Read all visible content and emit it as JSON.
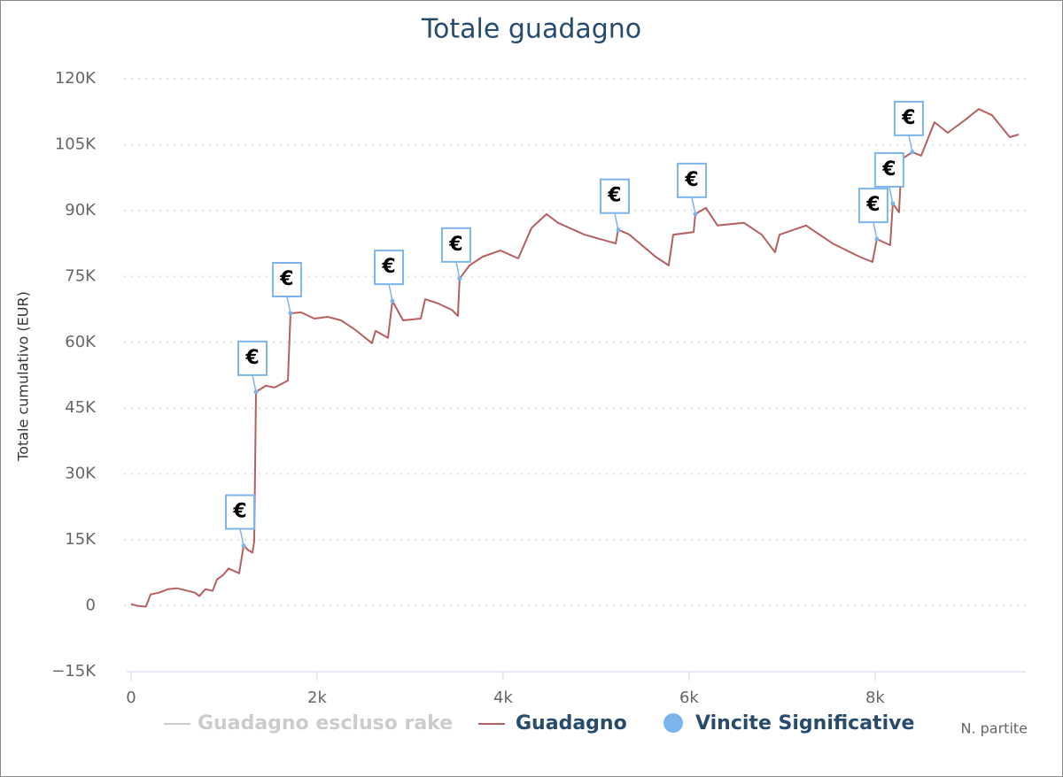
{
  "chart_data": {
    "type": "line",
    "title": "Totale guadagno",
    "y_axis_title": "Totale cumulativo (EUR)",
    "x_axis_title": "N. partite",
    "xlim": [
      0,
      9620
    ],
    "xticks": [
      0,
      {
        "value": 2000,
        "label": "2k"
      },
      {
        "value": 4000,
        "label": "4k"
      },
      {
        "value": 6000,
        "label": "6k"
      },
      {
        "value": 8000,
        "label": "8k"
      }
    ],
    "ylim": [
      -15000,
      120000
    ],
    "yticks": [
      {
        "value": -15000,
        "label": "−15K"
      },
      0,
      {
        "value": 15000,
        "label": "15K"
      },
      {
        "value": 30000,
        "label": "30K"
      },
      {
        "value": 45000,
        "label": "45K"
      },
      {
        "value": 60000,
        "label": "60K"
      },
      {
        "value": 75000,
        "label": "75K"
      },
      {
        "value": 90000,
        "label": "90K"
      },
      {
        "value": 105000,
        "label": "105K"
      },
      {
        "value": 120000,
        "label": "120K"
      }
    ],
    "grid": true,
    "x": [
      0,
      67,
      160,
      210,
      300,
      400,
      495,
      686,
      733,
      800,
      876,
      924,
      990,
      1048,
      1162,
      1210,
      1257,
      1305,
      1324,
      1343,
      1448,
      1543,
      1686,
      1714,
      1829,
      1971,
      2114,
      2257,
      2400,
      2590,
      2629,
      2762,
      2810,
      2924,
      3114,
      3162,
      3305,
      3448,
      3514,
      3533,
      3638,
      3781,
      3971,
      4162,
      4305,
      4467,
      4590,
      4876,
      5210,
      5238,
      5352,
      5638,
      5781,
      5829,
      6048,
      6067,
      6181,
      6305,
      6590,
      6781,
      6924,
      6971,
      7257,
      7543,
      7829,
      7971,
      8019,
      8162,
      8190,
      8257,
      8286,
      8400,
      8495,
      8638,
      8781,
      8971,
      9114,
      9257,
      9448,
      9543
    ],
    "series": [
      {
        "name": "Guadagno",
        "color": "#b65f61",
        "values": [
          400,
          0,
          -200,
          2600,
          3000,
          3800,
          4000,
          3000,
          2200,
          3800,
          3400,
          6000,
          7000,
          8500,
          7400,
          13700,
          12700,
          12100,
          14700,
          48700,
          50100,
          49700,
          51300,
          66600,
          66800,
          65400,
          65800,
          65000,
          63000,
          59800,
          62600,
          61000,
          69400,
          65000,
          65400,
          69800,
          68800,
          67400,
          66000,
          74500,
          77500,
          79500,
          80900,
          79100,
          86000,
          89200,
          87200,
          84500,
          82500,
          85600,
          84600,
          79500,
          77500,
          84500,
          85100,
          89200,
          90600,
          86600,
          87200,
          84500,
          80500,
          84500,
          86600,
          82500,
          79500,
          78300,
          83500,
          82100,
          91600,
          89600,
          101700,
          103300,
          102500,
          110100,
          107700,
          110700,
          113100,
          111700,
          106700,
          107300
        ]
      }
    ],
    "flags": {
      "name": "Vincite Significative",
      "color": "#7cb5ec",
      "label": "€",
      "x": [
        1210,
        1343,
        1714,
        2810,
        3533,
        5238,
        6067,
        8019,
        8190,
        8400
      ],
      "values": [
        13700,
        48700,
        66600,
        69400,
        74500,
        85600,
        89200,
        83500,
        91600,
        103300
      ]
    },
    "hidden_series": {
      "name": "Guadagno escluso rake",
      "color": "#cccccc"
    }
  }
}
